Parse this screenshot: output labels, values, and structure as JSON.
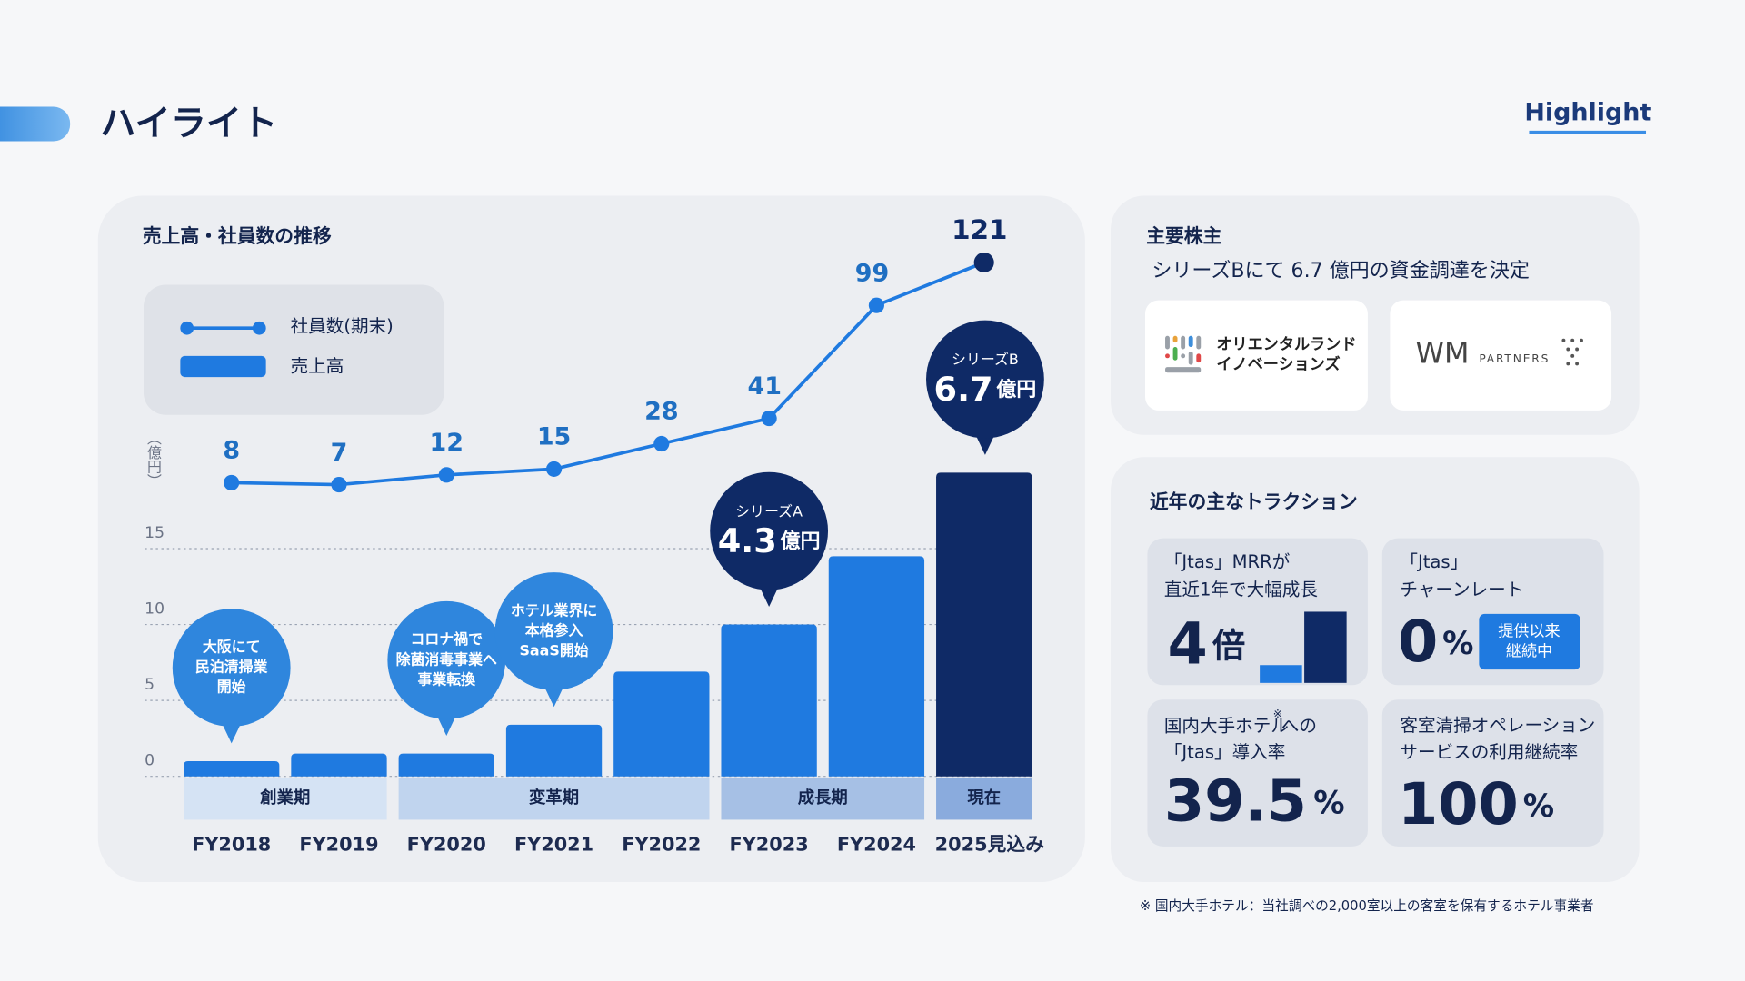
{
  "title": "ハイライト",
  "tag": "Highlight",
  "chart_data": {
    "type": "bar",
    "title": "売上高・社員数の推移",
    "y_label": "（億円）",
    "categories": [
      "FY2018",
      "FY2019",
      "FY2020",
      "FY2021",
      "FY2022",
      "FY2023",
      "FY2024",
      "2025見込み"
    ],
    "series": [
      {
        "name": "社員数(期末)",
        "type": "line",
        "axis": "y2",
        "color": "#1f7ae0",
        "values": [
          8,
          7,
          12,
          15,
          28,
          41,
          99,
          121
        ],
        "point_colors": [
          "#1f7ae0",
          "#1f7ae0",
          "#1f7ae0",
          "#1f7ae0",
          "#1f7ae0",
          "#1f7ae0",
          "#1f7ae0",
          "#0f2a66"
        ]
      },
      {
        "name": "売上高",
        "type": "bar",
        "color": "#1f7ae0",
        "values": [
          1.0,
          1.5,
          1.5,
          3.4,
          6.9,
          10.0,
          14.5,
          20.0
        ],
        "colors": [
          "#1f7ae0",
          "#1f7ae0",
          "#1f7ae0",
          "#1f7ae0",
          "#1f7ae0",
          "#1f7ae0",
          "#1f7ae0",
          "#0f2a66"
        ]
      }
    ],
    "ylim": [
      0,
      20
    ],
    "yticks": [
      0,
      5,
      10,
      15
    ],
    "y2lim": [
      0,
      125
    ],
    "grid": true,
    "phases": [
      {
        "label": "創業期",
        "span": 2,
        "color": "#d5e3f4"
      },
      {
        "label": "変革期",
        "span": 3,
        "color": "#c0d4ee"
      },
      {
        "label": "成長期",
        "span": 2,
        "color": "#a6c0e5"
      },
      {
        "label": "現在",
        "span": 1,
        "color": "#8aabdd"
      }
    ],
    "annotations": [
      {
        "lines": [
          "大阪にて",
          "民泊清掃業",
          "開始"
        ]
      },
      null,
      {
        "lines": [
          "コロナ禍で",
          "除菌消毒事業へ",
          "事業転換"
        ]
      },
      {
        "lines": [
          "ホテル業界に",
          "本格参入",
          "SaaS開始"
        ]
      },
      null,
      {
        "round": "シリーズA",
        "amount": 4.3,
        "unit": "億円"
      },
      null,
      {
        "round": "シリーズB",
        "amount": 6.7,
        "unit": "億円"
      }
    ]
  },
  "shareholders": {
    "title": "主要株主",
    "subtitle": "シリーズBにて 6.7 億円の資金調達を決定",
    "logo1": [
      "オリエンタルランド",
      "イノベーションズ"
    ],
    "logo2": {
      "mark": "WM",
      "text": "PARTNERS"
    }
  },
  "traction": {
    "title": "近年の主なトラクション",
    "cards": [
      {
        "lines": [
          "「Jtas」MRRが",
          "直近1年で大幅成長"
        ],
        "value": 4,
        "unit": "倍",
        "bars": [
          1,
          4
        ]
      },
      {
        "lines": [
          "「Jtas」",
          "チャーンレート"
        ],
        "value": 0,
        "unit": "%",
        "badge": [
          "提供以来",
          "継続中"
        ]
      },
      {
        "lines": [
          [
            "国内大手ホテル",
            "※",
            "への"
          ],
          "「Jtas」導入率"
        ],
        "value": 39.5,
        "unit": "%"
      },
      {
        "lines": [
          "客室清掃オペレーション",
          "サービスの利用継続率"
        ],
        "value": 100,
        "unit": "%"
      }
    ]
  },
  "footnote": "※ 国内大手ホテル：当社調べの2,000室以上の客室を保有するホテル事業者"
}
